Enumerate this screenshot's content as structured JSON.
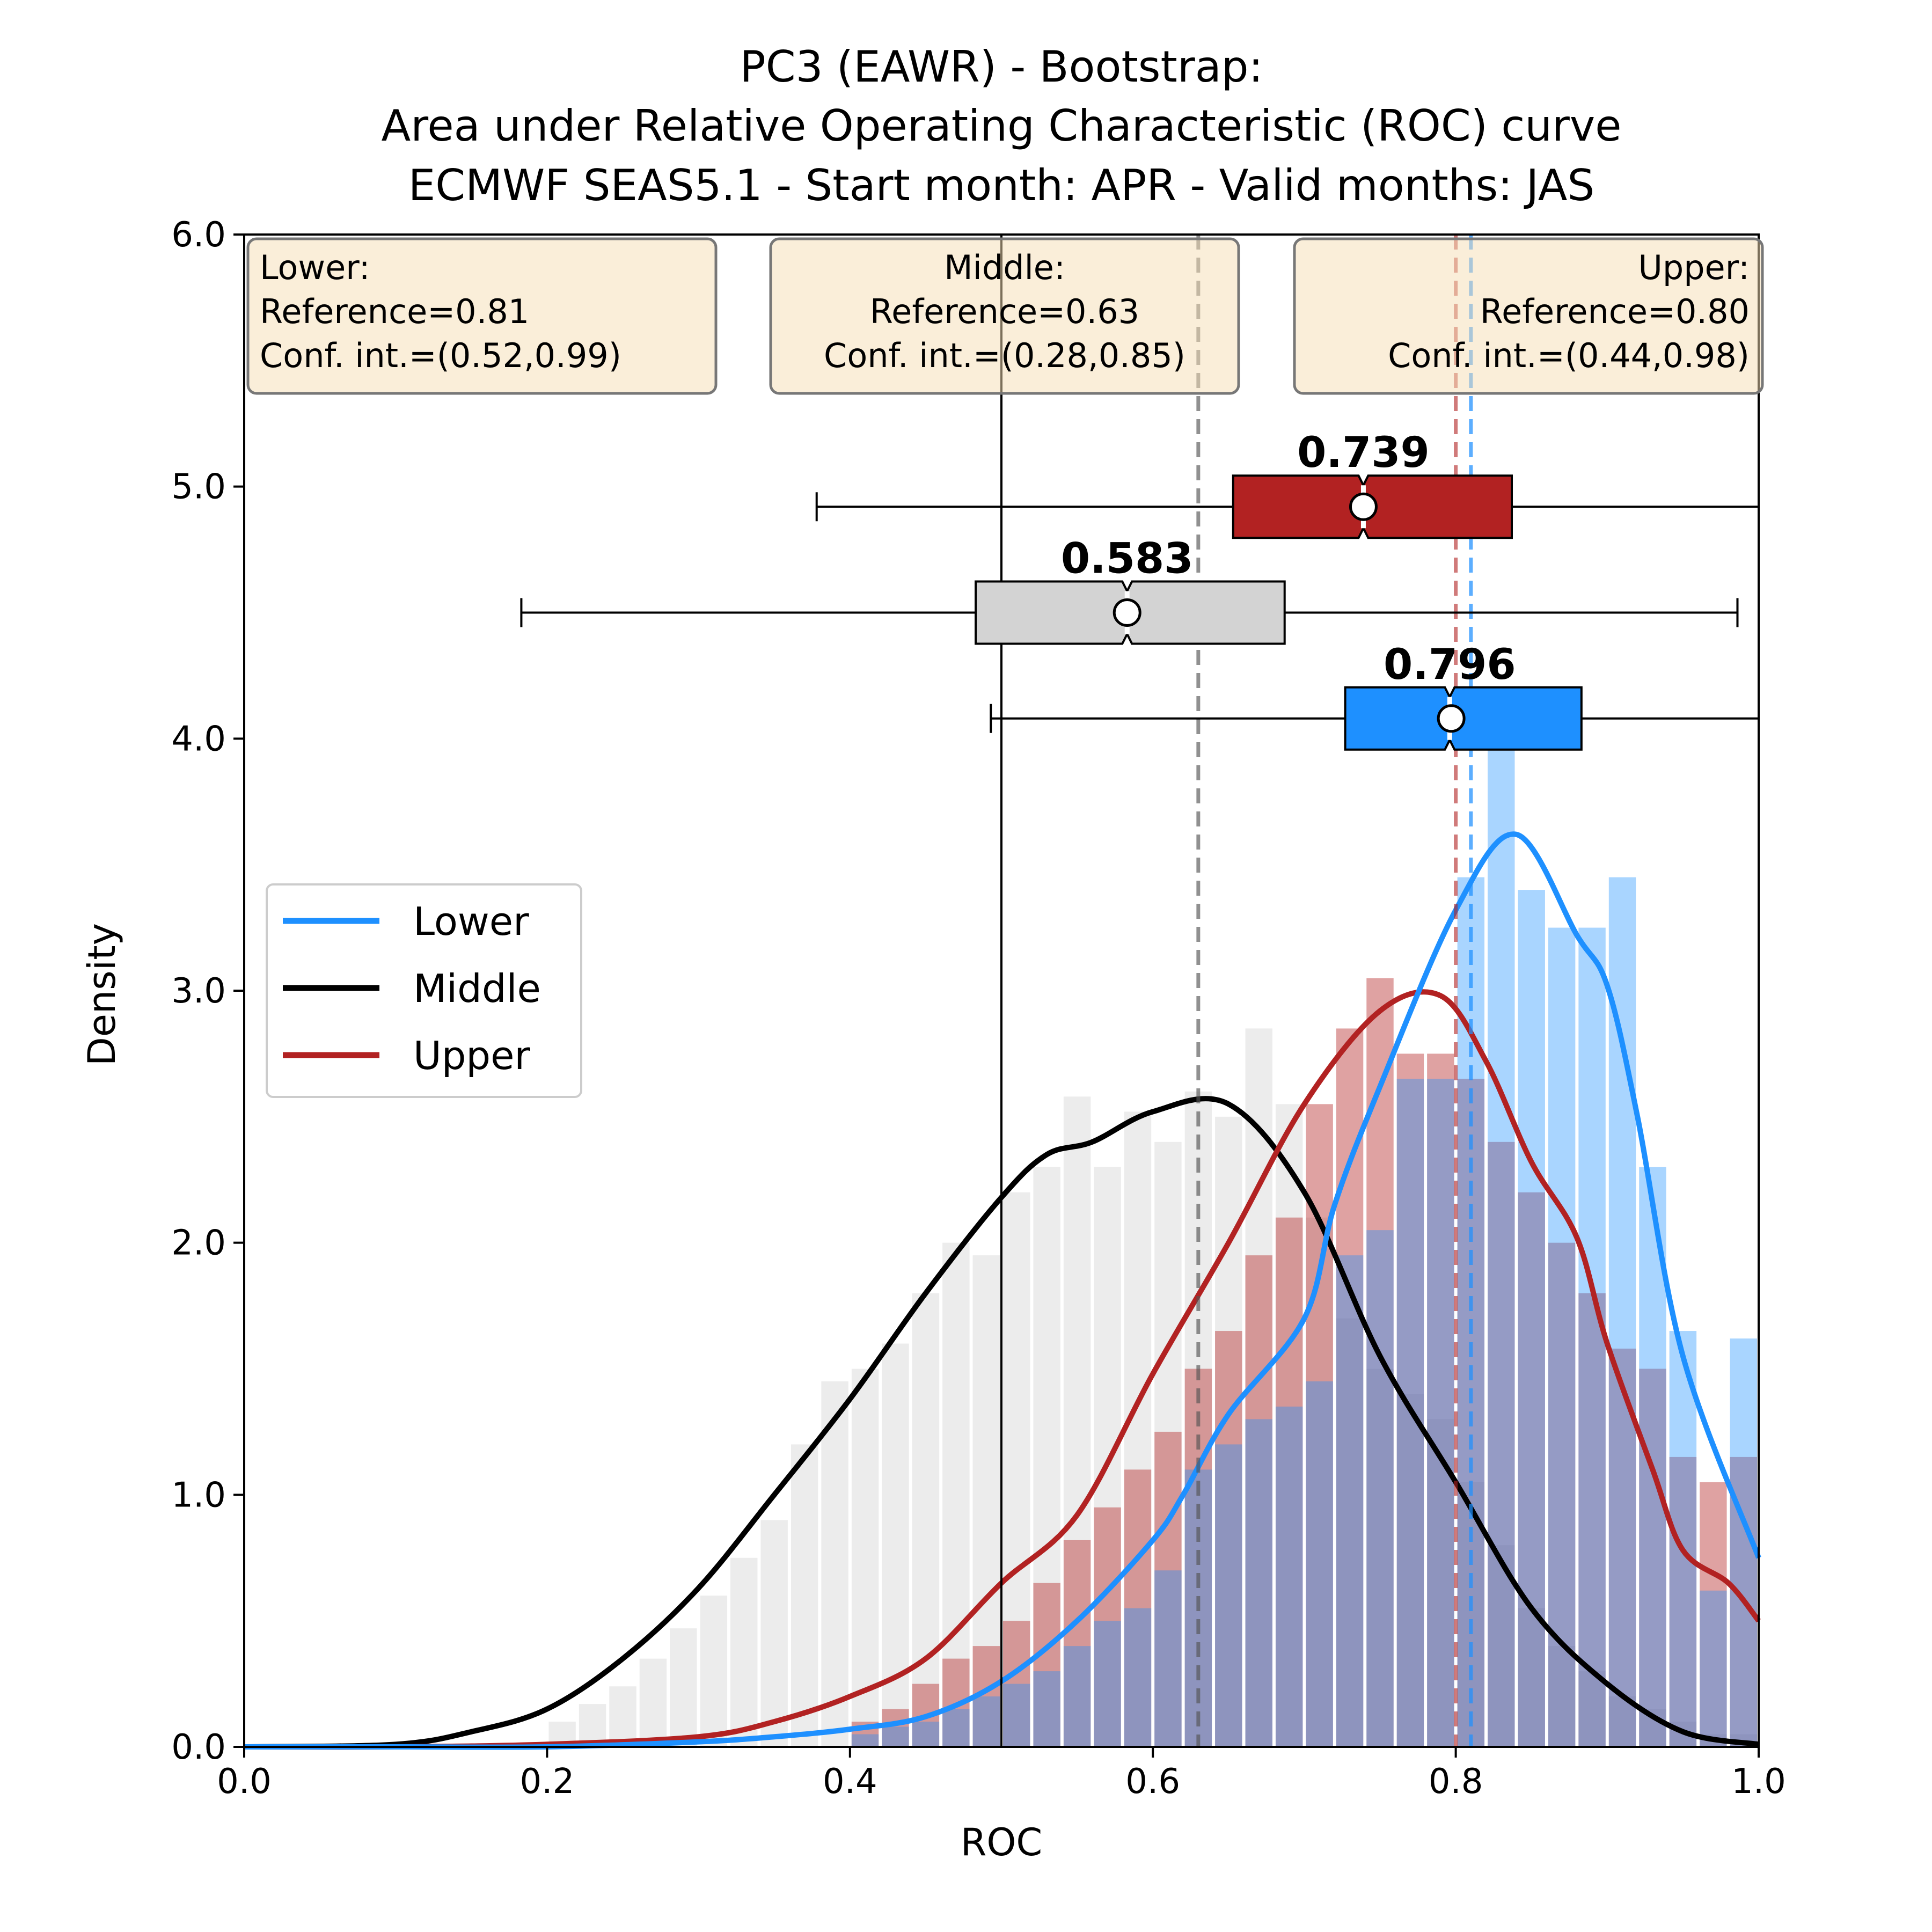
{
  "chart_data": {
    "type": "histogram-kde-boxplot",
    "title_lines": [
      "PC3 (EAWR) - Bootstrap:",
      "Area under Relative Operating Characteristic (ROC) curve",
      "ECMWF SEAS5.1 - Start month: APR - Valid months: JAS"
    ],
    "xlabel": "ROC",
    "ylabel": "Density",
    "xlim": [
      0.0,
      1.0
    ],
    "ylim": [
      0.0,
      6.0
    ],
    "xticks": [
      "0.0",
      "0.2",
      "0.4",
      "0.6",
      "0.8",
      "1.0"
    ],
    "yticks": [
      "0.0",
      "1.0",
      "2.0",
      "3.0",
      "4.0",
      "5.0",
      "6.0"
    ],
    "grid": false,
    "legend_position": "center-left",
    "bin_edges": [
      0.0,
      0.02,
      0.04,
      0.06,
      0.08,
      0.1,
      0.12,
      0.14,
      0.16,
      0.18,
      0.2,
      0.22,
      0.24,
      0.26,
      0.28,
      0.3,
      0.32,
      0.34,
      0.36,
      0.38,
      0.4,
      0.42,
      0.44,
      0.46,
      0.48,
      0.5,
      0.52,
      0.54,
      0.56,
      0.58,
      0.6,
      0.62,
      0.64,
      0.66,
      0.68,
      0.7,
      0.72,
      0.74,
      0.76,
      0.78,
      0.8,
      0.82,
      0.84,
      0.86,
      0.88,
      0.9,
      0.92,
      0.94,
      0.96,
      0.98,
      1.0
    ],
    "reference_line": 0.5,
    "series": [
      {
        "name": "Lower",
        "color": "#1e90ff",
        "hist_values": [
          0,
          0,
          0,
          0,
          0,
          0,
          0,
          0,
          0,
          0,
          0,
          0,
          0,
          0,
          0,
          0,
          0,
          0,
          0,
          0,
          0.05,
          0.08,
          0.1,
          0.15,
          0.2,
          0.25,
          0.3,
          0.4,
          0.5,
          0.55,
          0.7,
          1.1,
          1.2,
          1.3,
          1.35,
          1.45,
          1.95,
          2.05,
          2.65,
          2.65,
          3.45,
          4.0,
          3.4,
          3.25,
          3.25,
          3.45,
          2.3,
          1.65,
          0.62,
          1.62
        ],
        "kde_x": [
          0.0,
          0.1,
          0.2,
          0.3,
          0.35,
          0.4,
          0.45,
          0.5,
          0.55,
          0.6,
          0.62,
          0.65,
          0.7,
          0.72,
          0.75,
          0.8,
          0.84,
          0.88,
          0.9,
          0.92,
          0.95,
          1.0
        ],
        "kde_y": [
          0.0,
          0.0,
          0.0,
          0.02,
          0.04,
          0.07,
          0.12,
          0.26,
          0.5,
          0.82,
          1.0,
          1.32,
          1.7,
          2.15,
          2.62,
          3.32,
          3.62,
          3.22,
          3.02,
          2.5,
          1.55,
          0.75
        ],
        "reference_value": 0.81,
        "box": {
          "whisker_low": 0.493,
          "q1": 0.727,
          "median": 0.796,
          "mean": 0.797,
          "q3": 0.883,
          "whisker_high": 1.0,
          "y": 4.08
        },
        "info": {
          "title": "Lower:",
          "reference": "Reference=0.81",
          "conf": "Conf. int.=(0.52,0.99)"
        },
        "median_label": "0.796"
      },
      {
        "name": "Middle",
        "color": "#000000",
        "hist_values": [
          0,
          0,
          0,
          0,
          0,
          0,
          0,
          0,
          0,
          0,
          0.1,
          0.17,
          0.24,
          0.35,
          0.47,
          0.6,
          0.75,
          0.9,
          1.2,
          1.45,
          1.5,
          1.6,
          1.8,
          2.0,
          1.95,
          2.2,
          2.3,
          2.58,
          2.3,
          2.52,
          2.4,
          2.6,
          2.5,
          2.85,
          2.55,
          2.1,
          1.7,
          1.5,
          1.4,
          1.3,
          1.05,
          0.8,
          0.55,
          0.4,
          0.3,
          0.2,
          0.15,
          0.1,
          0.05,
          0.05
        ],
        "kde_x": [
          0.0,
          0.1,
          0.15,
          0.2,
          0.25,
          0.3,
          0.35,
          0.4,
          0.45,
          0.5,
          0.53,
          0.56,
          0.6,
          0.65,
          0.7,
          0.75,
          0.8,
          0.85,
          0.9,
          0.95,
          1.0
        ],
        "kde_y": [
          0.0,
          0.01,
          0.06,
          0.15,
          0.35,
          0.63,
          1.0,
          1.38,
          1.8,
          2.18,
          2.35,
          2.4,
          2.52,
          2.55,
          2.2,
          1.55,
          1.05,
          0.55,
          0.25,
          0.06,
          0.01
        ],
        "reference_value": 0.63,
        "box": {
          "whisker_low": 0.183,
          "q1": 0.483,
          "median": 0.583,
          "mean": 0.583,
          "q3": 0.687,
          "whisker_high": 0.986,
          "y": 4.5
        },
        "info": {
          "title": "Middle:",
          "reference": "Reference=0.63",
          "conf": "Conf. int.=(0.28,0.85)"
        },
        "median_label": "0.583"
      },
      {
        "name": "Upper",
        "color": "#b22222",
        "hist_values": [
          0,
          0,
          0,
          0,
          0,
          0,
          0,
          0,
          0,
          0,
          0,
          0,
          0,
          0,
          0,
          0,
          0,
          0,
          0,
          0,
          0.1,
          0.15,
          0.25,
          0.35,
          0.4,
          0.5,
          0.65,
          0.82,
          0.95,
          1.1,
          1.25,
          1.5,
          1.65,
          1.95,
          2.1,
          2.55,
          2.85,
          3.05,
          2.75,
          2.75,
          2.65,
          2.4,
          2.2,
          2.0,
          1.8,
          1.58,
          1.5,
          1.15,
          1.05,
          1.15
        ],
        "kde_x": [
          0.0,
          0.1,
          0.2,
          0.3,
          0.35,
          0.4,
          0.45,
          0.5,
          0.55,
          0.6,
          0.65,
          0.7,
          0.75,
          0.79,
          0.82,
          0.85,
          0.88,
          0.9,
          0.93,
          0.95,
          0.98,
          1.0
        ],
        "kde_y": [
          0.0,
          0.0,
          0.01,
          0.04,
          0.1,
          0.2,
          0.35,
          0.65,
          0.92,
          1.48,
          2.0,
          2.55,
          2.92,
          2.98,
          2.72,
          2.32,
          2.02,
          1.6,
          1.1,
          0.78,
          0.65,
          0.5
        ],
        "reference_value": 0.8,
        "box": {
          "whisker_low": 0.378,
          "q1": 0.653,
          "median": 0.739,
          "mean": 0.739,
          "q3": 0.837,
          "whisker_high": 1.0,
          "y": 4.92
        },
        "info": {
          "title": "Upper:",
          "reference": "Reference=0.80",
          "conf": "Conf. int.=(0.44,0.98)"
        },
        "median_label": "0.739"
      }
    ]
  }
}
